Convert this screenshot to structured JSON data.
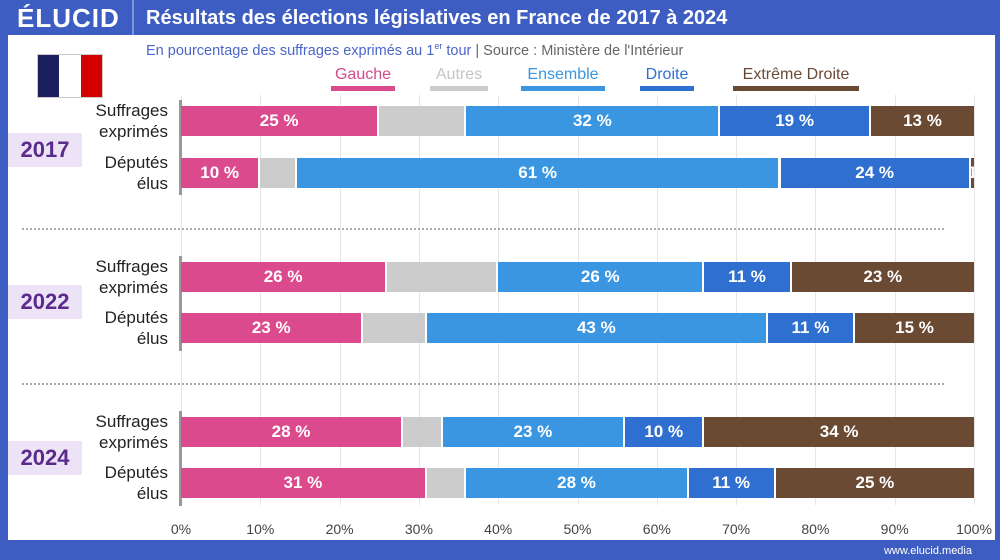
{
  "header": {
    "logo": "ÉLUCID",
    "title": "Résultats des élections législatives en France de 2017 à 2024"
  },
  "subtitle": {
    "main": "En pourcentage des suffrages exprimés au 1",
    "sup": "er",
    "tail": " tour",
    "source": "Source : Ministère de l'Intérieur"
  },
  "footer": "www.elucid.media",
  "chart_data": {
    "type": "bar",
    "stacked": true,
    "orientation": "horizontal",
    "xlim": [
      0,
      100
    ],
    "ticks": [
      "0%",
      "10%",
      "20%",
      "30%",
      "40%",
      "50%",
      "60%",
      "70%",
      "80%",
      "90%",
      "100%"
    ],
    "legend_placement": "top",
    "series": [
      {
        "name": "Gauche",
        "color": "#dc4a8e",
        "label_color": "#d24b88"
      },
      {
        "name": "Autres",
        "color": "#cccccc",
        "label_color": "#c4c4c4"
      },
      {
        "name": "Ensemble",
        "color": "#3a96e0",
        "label_color": "#3a96e0"
      },
      {
        "name": "Droite",
        "color": "#2e6fd0",
        "label_color": "#2e6fd0"
      },
      {
        "name": "Extrême Droite",
        "color": "#6b4a34",
        "label_color": "#6b4a34"
      }
    ],
    "groups": [
      {
        "year": "2017",
        "rows": [
          {
            "label": [
              "Suffrages",
              "exprimés"
            ],
            "values": [
              25,
              11,
              32,
              19,
              13
            ],
            "labels": [
              "25 %",
              "",
              "32 %",
              "19 %",
              "13 %"
            ]
          },
          {
            "label": [
              "Députés",
              "élus"
            ],
            "values": [
              10,
              4.6,
              61,
              24,
              1
            ],
            "labels": [
              "10 %",
              "",
              "61 %",
              "24 %",
              "1"
            ]
          }
        ]
      },
      {
        "year": "2022",
        "rows": [
          {
            "label": [
              "Suffrages",
              "exprimés"
            ],
            "values": [
              26,
              14,
              26,
              11,
              23
            ],
            "labels": [
              "26 %",
              "",
              "26 %",
              "11 %",
              "23 %"
            ]
          },
          {
            "label": [
              "Députés",
              "élus"
            ],
            "values": [
              23,
              8,
              43,
              11,
              15
            ],
            "labels": [
              "23 %",
              "",
              "43 %",
              "11 %",
              "15 %"
            ]
          }
        ]
      },
      {
        "year": "2024",
        "rows": [
          {
            "label": [
              "Suffrages",
              "exprimés"
            ],
            "values": [
              28,
              5,
              23,
              10,
              34
            ],
            "labels": [
              "28 %",
              "",
              "23 %",
              "10 %",
              "34 %"
            ]
          },
          {
            "label": [
              "Députés",
              "élus"
            ],
            "values": [
              31,
              5,
              28,
              11,
              25
            ],
            "labels": [
              "31 %",
              "",
              "28 %",
              "11 %",
              "25 %"
            ]
          }
        ]
      }
    ]
  }
}
